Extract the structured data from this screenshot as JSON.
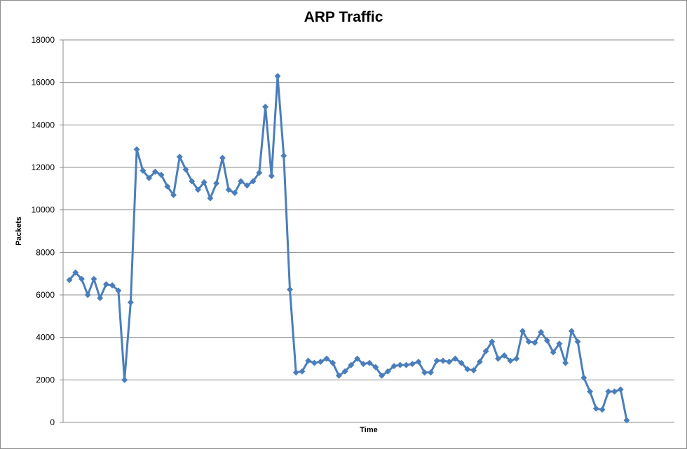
{
  "chart_data": {
    "type": "line",
    "title": "ARP Traffic",
    "xlabel": "Time",
    "ylabel": "Packets",
    "ylim": [
      0,
      18000
    ],
    "yticks": [
      "0",
      "2000",
      "4000",
      "6000",
      "8000",
      "10000",
      "12000",
      "14000",
      "16000",
      "18000"
    ],
    "grid": true,
    "legend": "none",
    "series": [
      {
        "color": "#4a7ebb",
        "marker": "diamond",
        "values": [
          6700,
          7050,
          6750,
          6000,
          6750,
          5850,
          6500,
          6450,
          6200,
          2000,
          5650,
          12850,
          11850,
          11500,
          11800,
          11650,
          11100,
          10700,
          12500,
          11900,
          11350,
          10950,
          11300,
          10550,
          11250,
          12450,
          10950,
          10800,
          11350,
          11150,
          11350,
          11750,
          14850,
          11600,
          16300,
          12550,
          6250,
          2350,
          2400,
          2900,
          2800,
          2850,
          3000,
          2800,
          2200,
          2400,
          2700,
          3000,
          2750,
          2800,
          2600,
          2200,
          2400,
          2650,
          2700,
          2700,
          2750,
          2850,
          2350,
          2350,
          2900,
          2900,
          2850,
          3000,
          2800,
          2500,
          2450,
          2850,
          3350,
          3800,
          3000,
          3150,
          2900,
          3000,
          4300,
          3800,
          3750,
          4250,
          3850,
          3300,
          3700,
          2800,
          4300,
          3800,
          2100,
          1450,
          650,
          600,
          1450,
          1450,
          1550,
          100
        ]
      }
    ]
  }
}
